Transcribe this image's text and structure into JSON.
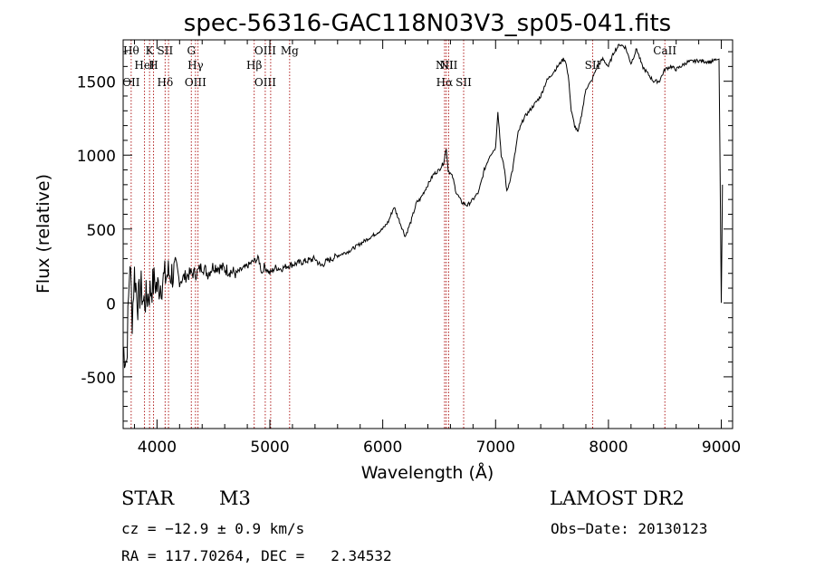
{
  "chart_data": {
    "type": "line",
    "title": "spec-56316-GAC118N03V3_sp05-041.fits",
    "xlabel": "Wavelength (Å)",
    "ylabel": "Flux (relative)",
    "xlim": [
      3700,
      9100
    ],
    "ylim": [
      -850,
      1780
    ],
    "xticks": [
      "4000",
      "5000",
      "6000",
      "7000",
      "8000",
      "9000"
    ],
    "yticks": [
      "-500",
      "0",
      "500",
      "1000",
      "1500"
    ],
    "grid": false,
    "series": [
      {
        "color": "#000000",
        "x": [
          3700,
          3730,
          3760,
          3780,
          3800,
          3830,
          3860,
          3880,
          3920,
          3950,
          3980,
          4000,
          4050,
          4100,
          4150,
          4200,
          4250,
          4300,
          4350,
          4400,
          4450,
          4500,
          4600,
          4700,
          4800,
          4850,
          4900,
          4930,
          4950,
          5000,
          5050,
          5100,
          5150,
          5200,
          5300,
          5400,
          5450,
          5500,
          5600,
          5700,
          5800,
          5900,
          6000,
          6050,
          6100,
          6150,
          6200,
          6250,
          6300,
          6330,
          6400,
          6450,
          6500,
          6540,
          6563,
          6580,
          6620,
          6650,
          6700,
          6750,
          6800,
          6850,
          6900,
          6950,
          7000,
          7020,
          7050,
          7080,
          7100,
          7150,
          7200,
          7250,
          7300,
          7350,
          7400,
          7450,
          7500,
          7550,
          7600,
          7620,
          7650,
          7670,
          7700,
          7730,
          7780,
          7800,
          7850,
          7900,
          7950,
          8000,
          8050,
          8100,
          8150,
          8200,
          8250,
          8300,
          8350,
          8400,
          8450,
          8500,
          8550,
          8600,
          8700,
          8800,
          8900,
          8980,
          9000,
          9010
        ],
        "y": [
          -300,
          -400,
          300,
          -100,
          200,
          0,
          100,
          0,
          50,
          100,
          150,
          100,
          150,
          200,
          200,
          150,
          180,
          200,
          200,
          250,
          200,
          250,
          230,
          200,
          250,
          280,
          300,
          200,
          250,
          200,
          240,
          230,
          250,
          260,
          280,
          300,
          250,
          280,
          320,
          350,
          400,
          450,
          500,
          550,
          650,
          550,
          450,
          550,
          680,
          700,
          800,
          870,
          900,
          950,
          1050,
          900,
          850,
          750,
          680,
          660,
          700,
          750,
          900,
          1000,
          1050,
          1300,
          1000,
          900,
          750,
          900,
          1150,
          1250,
          1300,
          1350,
          1400,
          1500,
          1550,
          1600,
          1650,
          1640,
          1500,
          1300,
          1200,
          1150,
          1350,
          1450,
          1500,
          1600,
          1650,
          1600,
          1700,
          1750,
          1730,
          1620,
          1720,
          1600,
          1550,
          1500,
          1500,
          1580,
          1600,
          1580,
          1630,
          1640,
          1630,
          1650,
          0,
          800
        ]
      }
    ],
    "lines": [
      {
        "x": 3771,
        "upper": "Hθ",
        "lower": "OII"
      },
      {
        "x": 3889,
        "upper": "HeI",
        "lower": ""
      },
      {
        "x": 3934,
        "upper": "K",
        "lower": ""
      },
      {
        "x": 3969,
        "upper": "H",
        "lower": ""
      },
      {
        "x": 4072,
        "upper": "SII",
        "lower": "Hδ"
      },
      {
        "x": 4102,
        "upper": "",
        "lower": ""
      },
      {
        "x": 4304,
        "upper": "G",
        "lower": ""
      },
      {
        "x": 4341,
        "upper": "Hγ",
        "lower": "OIII"
      },
      {
        "x": 4363,
        "upper": "",
        "lower": ""
      },
      {
        "x": 4861,
        "upper": "Hβ",
        "lower": ""
      },
      {
        "x": 4959,
        "upper": "OIII",
        "lower": "OIII"
      },
      {
        "x": 5007,
        "upper": "",
        "lower": ""
      },
      {
        "x": 5175,
        "upper": "Mg",
        "lower": ""
      },
      {
        "x": 6548,
        "upper": "NII",
        "lower": "Hα"
      },
      {
        "x": 6563,
        "upper": "",
        "lower": ""
      },
      {
        "x": 6584,
        "upper": "NII",
        "lower": ""
      },
      {
        "x": 6717,
        "upper": "",
        "lower": "SII"
      },
      {
        "x": 7860,
        "upper": "SII",
        "lower": ""
      },
      {
        "x": 8500,
        "upper": "CaII",
        "lower": ""
      }
    ]
  },
  "info": {
    "object": "STAR",
    "subclass": "M3",
    "survey": "LAMOST DR2",
    "cz": "cz = −12.9 ± 0.9 km/s",
    "obs_date": "Obs−Date: 20130123",
    "coords": "RA = 117.70264, DEC =   2.34532"
  }
}
